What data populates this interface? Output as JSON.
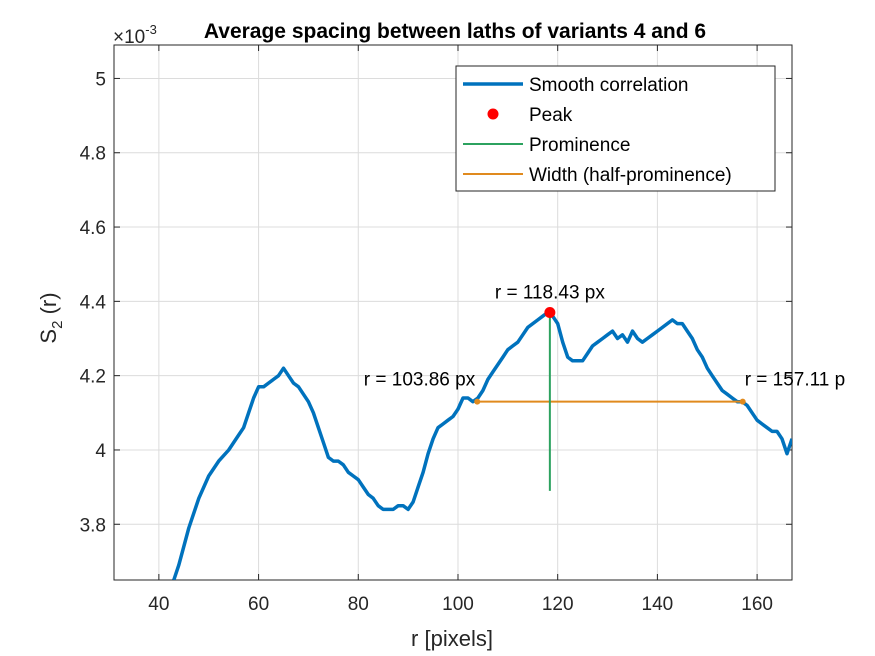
{
  "chart_data": {
    "type": "line",
    "title": "Average spacing between laths of variants 4 and 6",
    "xlabel": "r [pixels]",
    "ylabel_main": "S",
    "ylabel_sub": "2",
    "ylabel_suffix": " (r)",
    "exponent_base": "×10",
    "exponent_power": "-3",
    "xlim": [
      31,
      167
    ],
    "ylim": [
      3.65,
      5.09
    ],
    "xticks": [
      40,
      60,
      80,
      100,
      120,
      140,
      160
    ],
    "yticks": [
      3.8,
      4,
      4.2,
      4.4,
      4.6,
      4.8,
      5
    ],
    "xtick_labels": [
      "40",
      "60",
      "80",
      "100",
      "120",
      "140",
      "160"
    ],
    "ytick_labels": [
      "3.8",
      "4",
      "4.2",
      "4.4",
      "4.6",
      "4.8",
      "5"
    ],
    "grid": true,
    "legend_position": "top-right",
    "legend": [
      "Smooth correlation",
      "Peak",
      "Prominence",
      "Width (half-prominence)"
    ],
    "colors": {
      "smooth": "#0072bd",
      "peak": "#ff0000",
      "prominence": "#2ca25f",
      "width": "#e08a1e"
    },
    "series": [
      {
        "name": "Smooth correlation",
        "x": [
          43,
          44,
          46,
          48,
          50,
          52,
          54,
          56,
          57,
          58,
          59,
          60,
          61,
          62,
          63,
          64,
          65,
          66,
          67,
          68,
          69,
          70,
          71,
          72,
          73,
          74,
          75,
          76,
          77,
          78,
          79,
          80,
          81,
          82,
          83,
          84,
          85,
          86,
          87,
          88,
          89,
          90,
          91,
          92,
          93,
          94,
          95,
          96,
          97,
          98,
          99,
          100,
          101,
          102,
          103,
          104,
          105,
          106,
          107,
          108,
          109,
          110,
          111,
          112,
          113,
          114,
          115,
          116,
          117,
          118,
          118.5,
          119,
          120,
          121,
          122,
          123,
          124,
          125,
          126,
          127,
          128,
          129,
          130,
          131,
          132,
          133,
          134,
          135,
          136,
          137,
          138,
          139,
          140,
          141,
          142,
          143,
          144,
          145,
          146,
          147,
          148,
          149,
          150,
          151,
          152,
          153,
          154,
          155,
          156,
          157,
          158,
          159,
          160,
          161,
          162,
          163,
          164,
          165,
          166,
          167
        ],
        "values": [
          3.65,
          3.69,
          3.79,
          3.87,
          3.93,
          3.97,
          4.0,
          4.04,
          4.06,
          4.1,
          4.14,
          4.17,
          4.17,
          4.18,
          4.19,
          4.2,
          4.22,
          4.2,
          4.18,
          4.17,
          4.15,
          4.13,
          4.1,
          4.06,
          4.02,
          3.98,
          3.97,
          3.97,
          3.96,
          3.94,
          3.93,
          3.92,
          3.9,
          3.88,
          3.87,
          3.85,
          3.84,
          3.84,
          3.84,
          3.85,
          3.85,
          3.84,
          3.86,
          3.9,
          3.94,
          3.99,
          4.03,
          4.06,
          4.07,
          4.08,
          4.09,
          4.11,
          4.14,
          4.14,
          4.13,
          4.14,
          4.16,
          4.19,
          4.21,
          4.23,
          4.25,
          4.27,
          4.28,
          4.29,
          4.31,
          4.33,
          4.34,
          4.35,
          4.36,
          4.37,
          4.37,
          4.36,
          4.34,
          4.29,
          4.25,
          4.24,
          4.24,
          4.24,
          4.26,
          4.28,
          4.29,
          4.3,
          4.31,
          4.32,
          4.3,
          4.31,
          4.29,
          4.32,
          4.3,
          4.29,
          4.3,
          4.31,
          4.32,
          4.33,
          4.34,
          4.35,
          4.34,
          4.34,
          4.32,
          4.3,
          4.27,
          4.25,
          4.22,
          4.2,
          4.18,
          4.16,
          4.15,
          4.14,
          4.13,
          4.13,
          4.12,
          4.1,
          4.08,
          4.07,
          4.06,
          4.05,
          4.05,
          4.03,
          3.99,
          4.03
        ]
      }
    ],
    "peak": {
      "x": 118.43,
      "y": 4.37,
      "label": "r = 118.43 px"
    },
    "prominence": {
      "x": 118.43,
      "y_bottom": 3.89,
      "y_top": 4.37
    },
    "width": {
      "x_left": 103.86,
      "x_right": 157.11,
      "y": 4.13,
      "left_label": "r = 103.86 px",
      "right_label": "r = 157.11 p"
    }
  }
}
